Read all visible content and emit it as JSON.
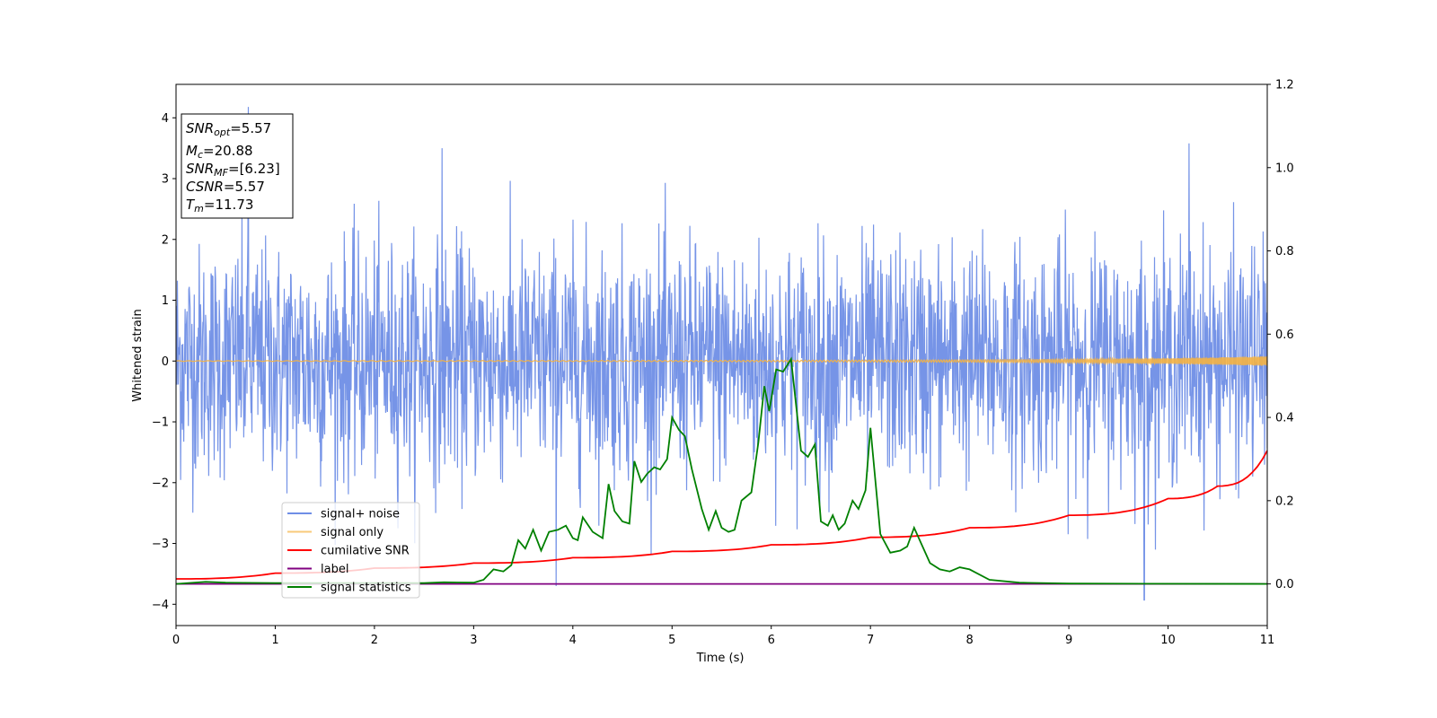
{
  "chart_data": {
    "type": "line",
    "xlabel": "Time (s)",
    "ylabel": "Whitened strain",
    "xlim": [
      0,
      11
    ],
    "ylim_left": [
      -4.35,
      4.55
    ],
    "ylim_right": [
      -0.1,
      1.2
    ],
    "x_ticks": [
      "0",
      "1",
      "2",
      "3",
      "4",
      "5",
      "6",
      "7",
      "8",
      "9",
      "10",
      "11"
    ],
    "y_ticks_left": [
      "4",
      "3",
      "2",
      "1",
      "0",
      "−1",
      "−2",
      "−3",
      "−4"
    ],
    "y_ticks_right": [
      "1.2",
      "1.0",
      "0.8",
      "0.6",
      "0.4",
      "0.2",
      "0.0"
    ],
    "grid": false,
    "legend_placement": "lower-left",
    "info_box": {
      "snr_opt": "=5.57",
      "mc": "=20.88",
      "snr_mf": "=[6.23]",
      "csnr": "=5.57",
      "tm": "=11.73"
    },
    "series": [
      {
        "name": "signal+ noise",
        "color": "#6f8ee6",
        "axis": "left",
        "description_values": "noise-like whitened strain, amplitude roughly within [-3.9, 4.2]",
        "envelope_max": 4.2,
        "envelope_min": -3.95,
        "spikes": [
          [
            0.73,
            4.18
          ],
          [
            2.68,
            3.5
          ],
          [
            10.21,
            3.58
          ],
          [
            3.83,
            -3.7
          ],
          [
            9.76,
            -3.93
          ]
        ]
      },
      {
        "name": "signal only",
        "color": "#f5b342",
        "axis": "left",
        "x": [
          0,
          4,
          6,
          8,
          9,
          10,
          10.5,
          11
        ],
        "amplitude": [
          0.005,
          0.008,
          0.012,
          0.02,
          0.03,
          0.045,
          0.06,
          0.08
        ]
      },
      {
        "name": "cumilative SNR",
        "color": "#ff0000",
        "axis": "right",
        "x": [
          0,
          1,
          2,
          3,
          4,
          5,
          6,
          7,
          8,
          9,
          10,
          10.5,
          11
        ],
        "y": [
          0.012,
          0.026,
          0.038,
          0.05,
          0.063,
          0.078,
          0.094,
          0.112,
          0.135,
          0.165,
          0.205,
          0.235,
          0.32
        ]
      },
      {
        "name": "label",
        "color": "#800080",
        "axis": "right",
        "x": [
          0,
          11
        ],
        "y": [
          0,
          0
        ]
      },
      {
        "name": "signal statistics",
        "color": "#008000",
        "axis": "right",
        "x": [
          0,
          0.3,
          0.5,
          1,
          2,
          2.5,
          2.7,
          3,
          3.1,
          3.2,
          3.3,
          3.38,
          3.45,
          3.52,
          3.6,
          3.68,
          3.76,
          3.85,
          3.93,
          4.0,
          4.05,
          4.1,
          4.2,
          4.3,
          4.36,
          4.42,
          4.5,
          4.57,
          4.62,
          4.69,
          4.75,
          4.82,
          4.88,
          4.95,
          5.0,
          5.07,
          5.13,
          5.2,
          5.3,
          5.37,
          5.44,
          5.5,
          5.57,
          5.63,
          5.7,
          5.8,
          5.87,
          5.93,
          5.98,
          6.05,
          6.12,
          6.2,
          6.3,
          6.37,
          6.44,
          6.5,
          6.57,
          6.62,
          6.68,
          6.74,
          6.82,
          6.88,
          6.95,
          7.0,
          7.1,
          7.2,
          7.3,
          7.37,
          7.44,
          7.6,
          7.7,
          7.8,
          7.9,
          8.0,
          8.2,
          8.5,
          9,
          11
        ],
        "y": [
          0.0,
          0.005,
          0.003,
          0.002,
          0.002,
          0.002,
          0.004,
          0.003,
          0.01,
          0.035,
          0.03,
          0.045,
          0.105,
          0.085,
          0.13,
          0.08,
          0.125,
          0.13,
          0.14,
          0.11,
          0.105,
          0.16,
          0.125,
          0.11,
          0.24,
          0.175,
          0.15,
          0.145,
          0.295,
          0.245,
          0.265,
          0.28,
          0.275,
          0.3,
          0.4,
          0.37,
          0.355,
          0.275,
          0.18,
          0.13,
          0.175,
          0.135,
          0.125,
          0.13,
          0.2,
          0.22,
          0.34,
          0.475,
          0.415,
          0.515,
          0.51,
          0.54,
          0.32,
          0.305,
          0.335,
          0.15,
          0.14,
          0.165,
          0.13,
          0.145,
          0.2,
          0.18,
          0.225,
          0.375,
          0.12,
          0.075,
          0.08,
          0.09,
          0.135,
          0.05,
          0.035,
          0.03,
          0.04,
          0.035,
          0.01,
          0.003,
          0.001,
          0.0
        ]
      }
    ]
  }
}
